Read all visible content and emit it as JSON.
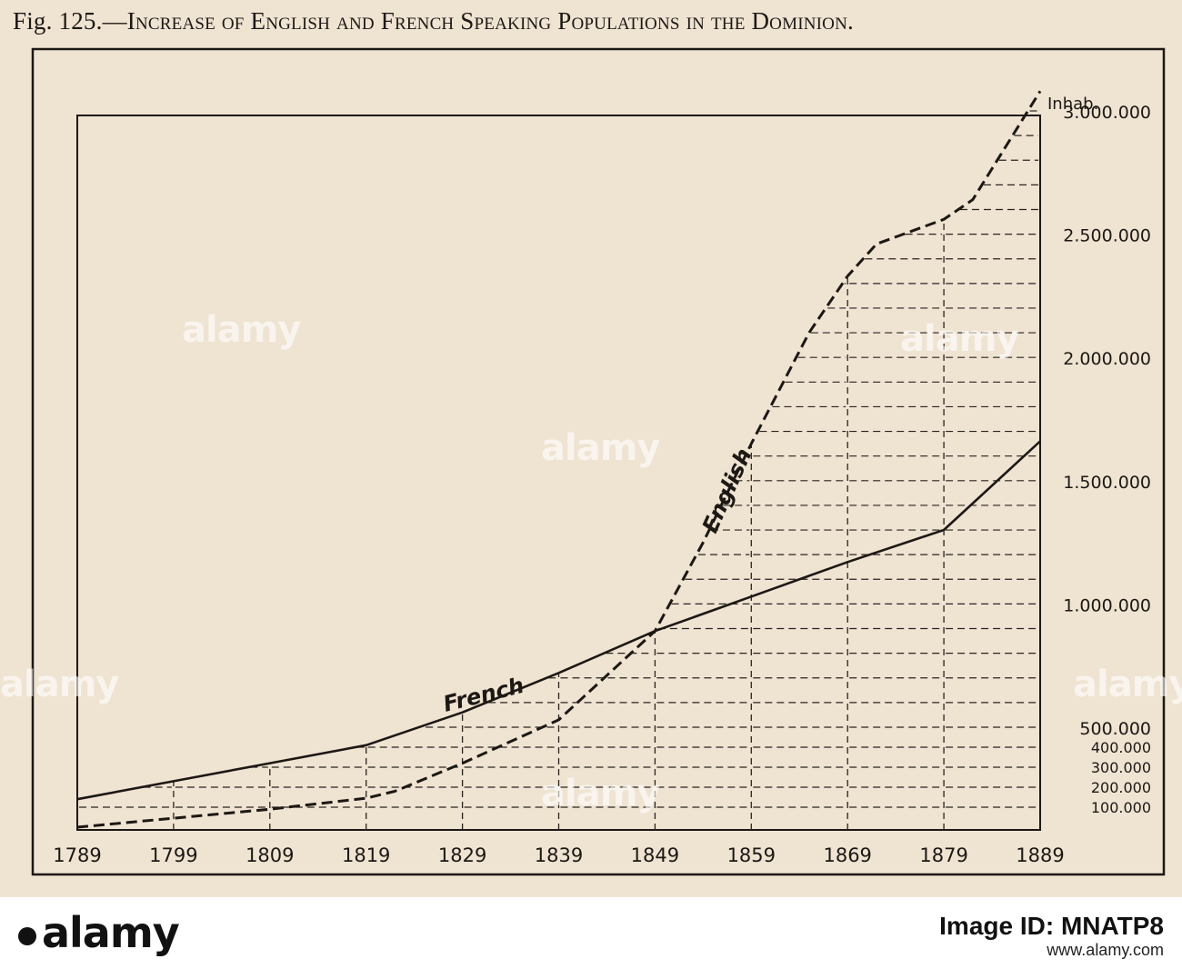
{
  "header": {
    "fig_label": "Fig. 125.—",
    "title_text": "Increase of English and French Speaking Populations in the Dominion."
  },
  "chart_data": {
    "type": "line",
    "ylabel": "Inhab.",
    "x": [
      1789,
      1799,
      1809,
      1819,
      1829,
      1839,
      1849,
      1859,
      1869,
      1879,
      1889
    ],
    "xlim": [
      1789,
      1889
    ],
    "ylim": [
      0,
      3000000
    ],
    "x_tick_labels": [
      "1789",
      "1799",
      "1809",
      "1819",
      "1829",
      "1839",
      "1849",
      "1859",
      "1869",
      "1879",
      "1889"
    ],
    "y_ticks": [
      {
        "value": 100000,
        "label": "100.000"
      },
      {
        "value": 200000,
        "label": "200.000"
      },
      {
        "value": 300000,
        "label": "300.000"
      },
      {
        "value": 400000,
        "label": "400.000"
      },
      {
        "value": 500000,
        "label": "500.000"
      },
      {
        "value": 1000000,
        "label": "1.000.000"
      },
      {
        "value": 1500000,
        "label": "1.500.000"
      },
      {
        "value": 2000000,
        "label": "2.000.000"
      },
      {
        "value": 2500000,
        "label": "2.500.000"
      },
      {
        "value": 3000000,
        "label": "3.000.000"
      }
    ],
    "grid_step": 100000,
    "series": [
      {
        "name": "French",
        "style": "solid",
        "points": [
          [
            1789,
            140000
          ],
          [
            1799,
            230000
          ],
          [
            1809,
            320000
          ],
          [
            1819,
            410000
          ],
          [
            1829,
            560000
          ],
          [
            1839,
            720000
          ],
          [
            1849,
            890000
          ],
          [
            1859,
            1030000
          ],
          [
            1869,
            1170000
          ],
          [
            1879,
            1300000
          ],
          [
            1889,
            1660000
          ]
        ]
      },
      {
        "name": "English",
        "style": "dashed",
        "points": [
          [
            1789,
            0
          ],
          [
            1799,
            45000
          ],
          [
            1809,
            90000
          ],
          [
            1819,
            145000
          ],
          [
            1822,
            180000
          ],
          [
            1829,
            320000
          ],
          [
            1839,
            530000
          ],
          [
            1849,
            890000
          ],
          [
            1854,
            1250000
          ],
          [
            1859,
            1650000
          ],
          [
            1865,
            2100000
          ],
          [
            1869,
            2330000
          ],
          [
            1872,
            2460000
          ],
          [
            1879,
            2560000
          ],
          [
            1882,
            2640000
          ],
          [
            1889,
            3080000
          ]
        ]
      }
    ]
  },
  "watermarks": [
    "alamy",
    "alamy",
    "alamy",
    "alamy",
    "alamy",
    "alamy"
  ],
  "footer": {
    "logo": "alamy",
    "image_id": "Image ID: MNATP8",
    "url": "www.alamy.com"
  }
}
